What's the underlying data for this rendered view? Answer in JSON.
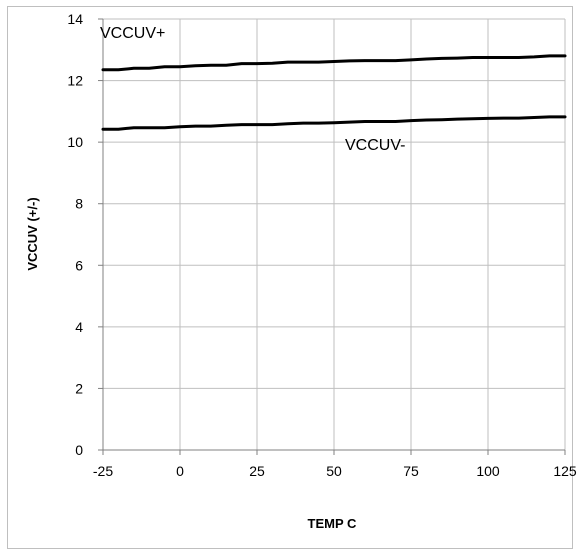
{
  "chart_data": {
    "type": "line",
    "title": "",
    "xlabel": "TEMP C",
    "ylabel": "VCCUV (+/-)",
    "xlim": [
      -25,
      125
    ],
    "ylim": [
      0,
      14
    ],
    "x_ticks": [
      "-25",
      "0",
      "25",
      "50",
      "75",
      "100",
      "125"
    ],
    "y_ticks": [
      "0",
      "2",
      "4",
      "6",
      "8",
      "10",
      "12",
      "14"
    ],
    "grid": true,
    "legend": "none",
    "line_color": "#000000",
    "series": [
      {
        "name": "VCCUV+",
        "x": [
          -25,
          -20,
          -15,
          -10,
          -5,
          0,
          5,
          10,
          15,
          20,
          25,
          30,
          35,
          40,
          45,
          50,
          55,
          60,
          65,
          70,
          75,
          80,
          85,
          90,
          95,
          100,
          105,
          110,
          115,
          120,
          125
        ],
        "y": [
          12.35,
          12.35,
          12.4,
          12.4,
          12.45,
          12.45,
          12.48,
          12.5,
          12.5,
          12.55,
          12.55,
          12.56,
          12.6,
          12.6,
          12.6,
          12.62,
          12.64,
          12.65,
          12.65,
          12.65,
          12.67,
          12.7,
          12.72,
          12.73,
          12.75,
          12.75,
          12.75,
          12.75,
          12.77,
          12.8,
          12.8
        ]
      },
      {
        "name": "VCCUV-",
        "x": [
          -25,
          -20,
          -15,
          -10,
          -5,
          0,
          5,
          10,
          15,
          20,
          25,
          30,
          35,
          40,
          45,
          50,
          55,
          60,
          65,
          70,
          75,
          80,
          85,
          90,
          95,
          100,
          105,
          110,
          115,
          120,
          125
        ],
        "y": [
          10.42,
          10.42,
          10.47,
          10.47,
          10.47,
          10.5,
          10.52,
          10.52,
          10.55,
          10.57,
          10.57,
          10.57,
          10.6,
          10.62,
          10.62,
          10.63,
          10.65,
          10.67,
          10.67,
          10.67,
          10.7,
          10.72,
          10.73,
          10.75,
          10.76,
          10.77,
          10.78,
          10.78,
          10.8,
          10.82,
          10.82
        ]
      }
    ]
  }
}
